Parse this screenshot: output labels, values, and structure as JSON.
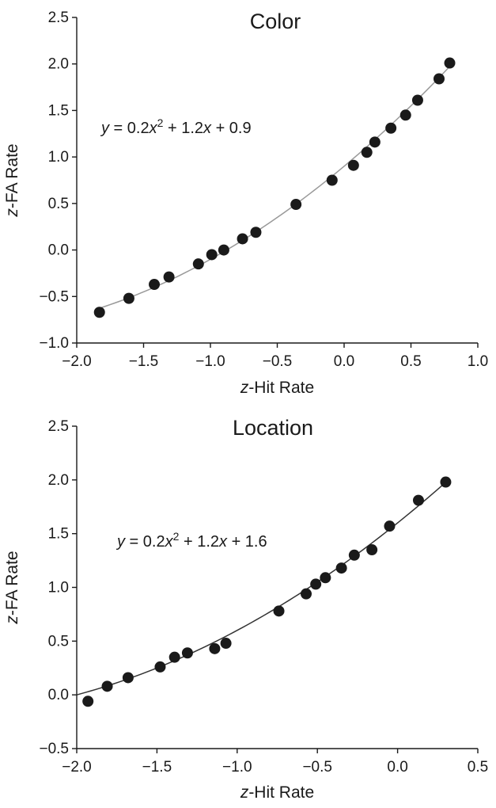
{
  "chart_data": [
    {
      "type": "scatter",
      "title": "Color",
      "xlabel": "z-Hit Rate",
      "xlabel_italic": "z",
      "xlabel_rest": "-Hit Rate",
      "ylabel": "z-FA Rate",
      "ylabel_italic": "z",
      "ylabel_rest": "-FA Rate",
      "xlim": [
        -2.0,
        1.0
      ],
      "ylim": [
        -1.0,
        2.5
      ],
      "xticks": [
        -2.0,
        -1.5,
        -1.0,
        -0.5,
        0.0,
        0.5,
        1.0
      ],
      "yticks": [
        -1.0,
        -0.5,
        0.0,
        0.5,
        1.0,
        1.5,
        2.0,
        2.5
      ],
      "xtick_labels": [
        "−2.0",
        "−1.5",
        "−1.0",
        "−0.5",
        "0.0",
        "0.5",
        "1.0"
      ],
      "ytick_labels": [
        "−1.0",
        "−0.5",
        "0.0",
        "0.5",
        "1.0",
        "1.5",
        "2.0",
        "2.5"
      ],
      "grid": false,
      "equation": {
        "y": "y",
        "p1": " = 0.2",
        "x1": "x",
        "sup": "2",
        "p2": " + 1.2",
        "x2": "x",
        "p3": " + 0.9"
      },
      "fit": {
        "a": 0.2,
        "b": 1.2,
        "c": 0.9,
        "x_range": [
          -1.85,
          0.8
        ],
        "color": "#999999"
      },
      "x": [
        -1.83,
        -1.61,
        -1.42,
        -1.31,
        -1.09,
        -0.99,
        -0.9,
        -0.76,
        -0.66,
        -0.36,
        -0.09,
        0.07,
        0.17,
        0.23,
        0.35,
        0.46,
        0.55,
        0.71,
        0.79
      ],
      "y": [
        -0.67,
        -0.52,
        -0.37,
        -0.29,
        -0.15,
        -0.05,
        0.0,
        0.12,
        0.19,
        0.49,
        0.75,
        0.91,
        1.05,
        1.16,
        1.31,
        1.45,
        1.61,
        1.84,
        2.01
      ],
      "marker_color": "#1a1a1a"
    },
    {
      "type": "scatter",
      "title": "Location",
      "xlabel": "z-Hit Rate",
      "xlabel_italic": "z",
      "xlabel_rest": "-Hit Rate",
      "ylabel": "z-FA Rate",
      "ylabel_italic": "z",
      "ylabel_rest": "-FA Rate",
      "xlim": [
        -2.0,
        0.5
      ],
      "ylim": [
        -0.5,
        2.5
      ],
      "xticks": [
        -2.0,
        -1.5,
        -1.0,
        -0.5,
        0.0,
        0.5
      ],
      "yticks": [
        -0.5,
        0.0,
        0.5,
        1.0,
        1.5,
        2.0,
        2.5
      ],
      "xtick_labels": [
        "−2.0",
        "−1.5",
        "−1.0",
        "−0.5",
        "0.0",
        "0.5"
      ],
      "ytick_labels": [
        "−0.5",
        "0.0",
        "0.5",
        "1.0",
        "1.5",
        "2.0",
        "2.5"
      ],
      "grid": false,
      "equation": {
        "y": "y",
        "p1": " = 0.2",
        "x1": "x",
        "sup": "2",
        "p2": " + 1.2",
        "x2": "x",
        "p3": " + 1.6"
      },
      "fit": {
        "a": 0.2,
        "b": 1.2,
        "c": 1.6,
        "x_range": [
          -2.0,
          0.3
        ],
        "color": "#333333"
      },
      "x": [
        -1.93,
        -1.81,
        -1.68,
        -1.48,
        -1.39,
        -1.31,
        -1.14,
        -1.07,
        -0.74,
        -0.57,
        -0.51,
        -0.45,
        -0.35,
        -0.27,
        -0.16,
        -0.05,
        0.13,
        0.3
      ],
      "y": [
        -0.06,
        0.08,
        0.16,
        0.26,
        0.35,
        0.39,
        0.43,
        0.48,
        0.78,
        0.94,
        1.03,
        1.09,
        1.18,
        1.3,
        1.35,
        1.57,
        1.81,
        1.98
      ],
      "marker_color": "#1a1a1a"
    }
  ]
}
